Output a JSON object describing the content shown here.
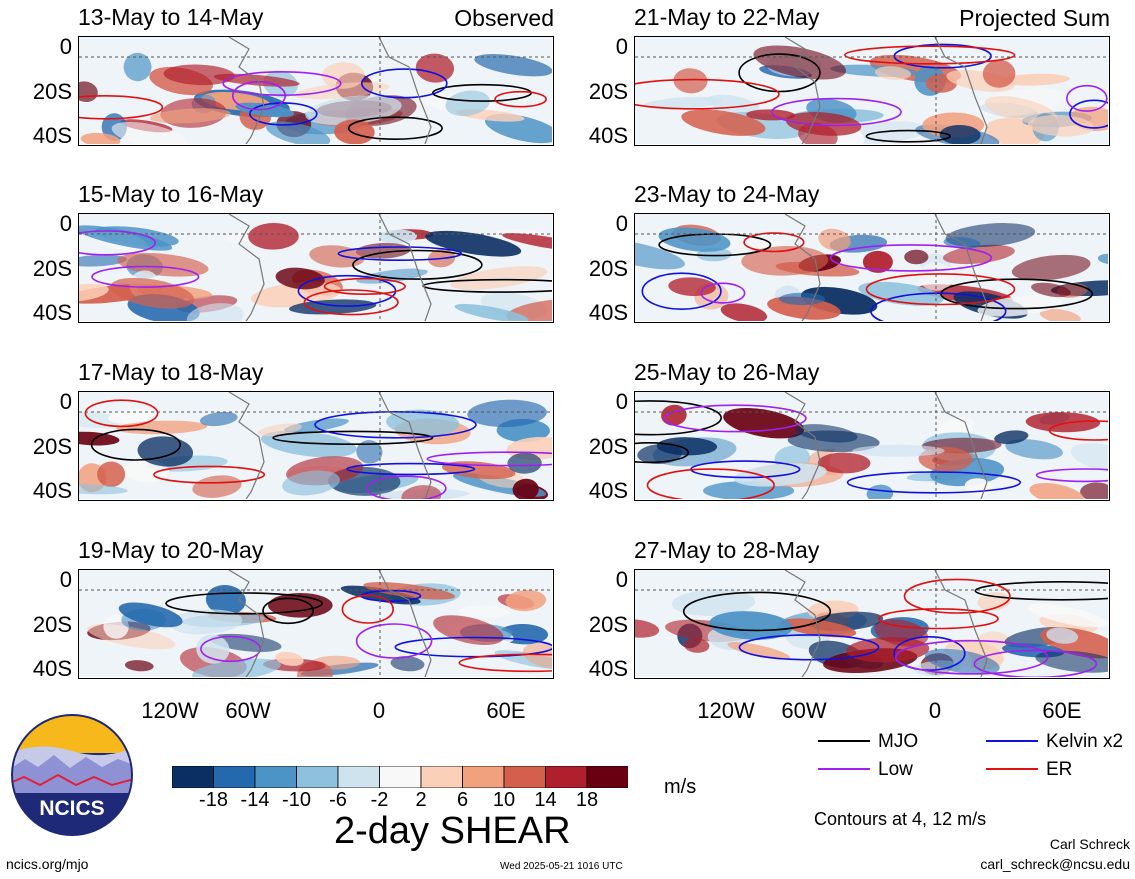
{
  "panels": [
    {
      "title": "13-May to 14-May",
      "tag": "Observed",
      "col": 0,
      "row": 0,
      "seed": 1
    },
    {
      "title": "15-May to 16-May",
      "tag": "",
      "col": 0,
      "row": 1,
      "seed": 2
    },
    {
      "title": "17-May to 18-May",
      "tag": "",
      "col": 0,
      "row": 2,
      "seed": 3
    },
    {
      "title": "19-May to 20-May",
      "tag": "",
      "col": 0,
      "row": 3,
      "seed": 4
    },
    {
      "title": "21-May to 22-May",
      "tag": "Projected Sum",
      "col": 1,
      "row": 0,
      "seed": 5
    },
    {
      "title": "23-May to 24-May",
      "tag": "",
      "col": 1,
      "row": 1,
      "seed": 6
    },
    {
      "title": "25-May to 26-May",
      "tag": "",
      "col": 1,
      "row": 2,
      "seed": 7
    },
    {
      "title": "27-May to 28-May",
      "tag": "",
      "col": 1,
      "row": 3,
      "seed": 8
    }
  ],
  "axes": {
    "y_ticks": [
      "0",
      "20S",
      "40S"
    ],
    "x_ticks": [
      "120W",
      "60W",
      "0",
      "60E"
    ]
  },
  "colorbar": {
    "colors": [
      "#0b2f63",
      "#2468ad",
      "#4c93c6",
      "#8dc1dd",
      "#cfe3ef",
      "#f8f8f8",
      "#fbd0b9",
      "#f2a17f",
      "#d45f4d",
      "#b01f2c",
      "#690011"
    ],
    "labels": [
      "-18",
      "-14",
      "-10",
      "-6",
      "-2",
      "2",
      "6",
      "10",
      "14",
      "18"
    ],
    "units": "m/s"
  },
  "title": "2-day SHEAR",
  "legend": [
    {
      "label": "MJO",
      "color": "#000000"
    },
    {
      "label": "Kelvin x2",
      "color": "#1010e0"
    },
    {
      "label": "Low",
      "color": "#a020f0"
    },
    {
      "label": "ER",
      "color": "#e01010"
    }
  ],
  "contours_note": "Contours at 4, 12 m/s",
  "logo_text": "NCICS",
  "footer": {
    "left": "ncics.org/mjo",
    "center": "Wed 2025-05-21 1016 UTC",
    "right_name": "Carl Schreck",
    "right_email": "carl_schreck@ncsu.edu"
  }
}
